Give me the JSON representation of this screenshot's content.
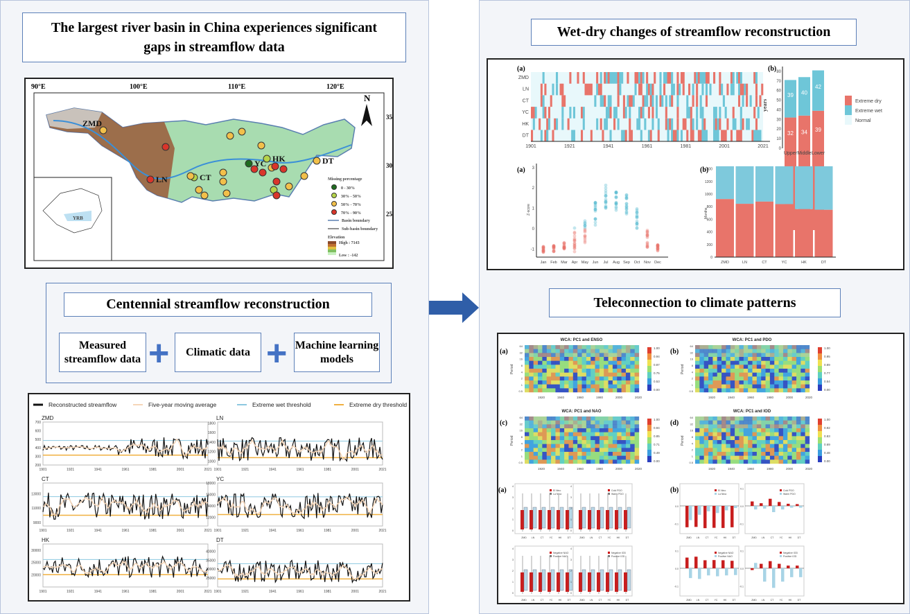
{
  "left": {
    "title": "The largest river basin in China experiences significant gaps in streamflow data",
    "map": {
      "lon_ticks": [
        "90°E",
        "100°E",
        "110°E",
        "120°E"
      ],
      "lat_ticks": [
        "35°N",
        "30°N",
        "25°N"
      ],
      "north": "N",
      "stations": [
        "ZMD",
        "LN",
        "CT",
        "YC",
        "HK",
        "DT"
      ],
      "inset_label": "YRB",
      "legend_title": "Missing percentage",
      "legend": [
        {
          "label": "0 - 30%",
          "color": "#1f6b1f"
        },
        {
          "label": "30% - 50%",
          "color": "#b5d44a"
        },
        {
          "label": "50% - 70%",
          "color": "#f2c04a"
        },
        {
          "label": "70% - 90%",
          "color": "#d9352a"
        }
      ],
      "basin_boundary": "Basin boundary",
      "subbasin_boundary": "Sub-basin boundary",
      "elevation_title": "Elevation",
      "elev_high": "High : 7143",
      "elev_low": "Low : -142"
    },
    "recon_title": "Centennial streamflow reconstruction",
    "inputs": [
      "Measured streamflow data",
      "Climatic data",
      "Machine learning models"
    ],
    "streamflow": {
      "legend": [
        "Reconstructed streamflow",
        "Five-year moving average",
        "Extreme wet threshold",
        "Extreme dry threshold"
      ],
      "colors": {
        "recon": "#111111",
        "ma": "#f6d6b8",
        "wet": "#8cc8e0",
        "dry": "#f0b040"
      },
      "x_ticks": [
        "1901",
        "1921",
        "1941",
        "1961",
        "1981",
        "2001",
        "2021"
      ],
      "panels": [
        {
          "name": "ZMD",
          "yticks": [
            200,
            300,
            400,
            500,
            600,
            700
          ],
          "ylim": [
            200,
            700
          ],
          "wet": 485,
          "dry": 315
        },
        {
          "name": "LN",
          "yticks": [
            1000,
            1200,
            1400,
            1600,
            1800
          ],
          "ylim": [
            920,
            1820
          ],
          "wet": 1420,
          "dry": 1075
        },
        {
          "name": "CT",
          "yticks": [
            9000,
            11000,
            13000
          ],
          "ylim": [
            8500,
            14500
          ],
          "wet": 12600,
          "dry": 10000
        },
        {
          "name": "YC",
          "yticks": [
            12000,
            14000,
            16000,
            18000
          ],
          "ylim": [
            10500,
            18000
          ],
          "wet": 15600,
          "dry": 12500
        },
        {
          "name": "HK",
          "yticks": [
            20000,
            25000,
            30000
          ],
          "ylim": [
            15000,
            32500
          ],
          "wet": 26200,
          "dry": 20000
        },
        {
          "name": "DT",
          "yticks": [
            25000,
            30000,
            35000,
            40000
          ],
          "ylim": [
            20000,
            44000
          ],
          "wet": 33000,
          "dry": 24500
        }
      ]
    }
  },
  "right": {
    "wetdry_title": "Wet-dry changes of streamflow reconstruction",
    "heat": {
      "label": "(a)",
      "rows": [
        "ZMD",
        "LN",
        "CT",
        "YC",
        "HK",
        "DT"
      ],
      "x_ticks": [
        "1901",
        "1921",
        "1941",
        "1961",
        "1981",
        "2001",
        "2021"
      ],
      "colors": {
        "dry": "#e8746a",
        "wet": "#6ec6d8",
        "normal": "#e8f8fb"
      }
    },
    "years_bar": {
      "label": "(b)",
      "ylabel": "years",
      "yticks": [
        0,
        10,
        20,
        30,
        40,
        50,
        60,
        70,
        80
      ],
      "categories": [
        "Upper",
        "Middle",
        "Lower"
      ],
      "dry": [
        32,
        34,
        39
      ],
      "wet": [
        39,
        40,
        42
      ],
      "legend": [
        "Extreme dry",
        "Extreme wet",
        "Normal"
      ]
    },
    "monthly": {
      "label": "(a)",
      "ylabel": "Z-score",
      "yticks": [
        -1,
        0,
        1,
        2,
        3
      ],
      "months": [
        "Jan",
        "Feb",
        "Mar",
        "Apr",
        "May",
        "Jun",
        "Jul",
        "Aug",
        "Sep",
        "Oct",
        "Nov",
        "Dec"
      ],
      "centers": [
        -1,
        -1,
        -0.85,
        -0.55,
        -0.1,
        0.7,
        1.6,
        1.4,
        1.1,
        0.4,
        -0.5,
        -0.95
      ]
    },
    "months_bar": {
      "label": "(b)",
      "ylabel": "Months",
      "yticks": [
        0,
        200,
        400,
        600,
        800,
        1000,
        1200,
        1400
      ],
      "categories": [
        "ZMD",
        "LN",
        "CT",
        "YC",
        "HK",
        "DT"
      ],
      "dry": [
        920,
        845,
        880,
        840,
        760,
        750
      ],
      "total": 1440
    },
    "tele_title": "Teleconnection to climate patterns",
    "wca": [
      {
        "label": "(a)",
        "title": "WCA: PC1 and ENSO",
        "scale": [
          "1.00",
          "0.94",
          "0.87",
          "0.75",
          "0.53",
          "0.00"
        ]
      },
      {
        "label": "(b)",
        "title": "WCA: PC1 and PDO",
        "scale": [
          "1.00",
          "0.95",
          "0.89",
          "0.77",
          "0.54",
          "0.00"
        ]
      },
      {
        "label": "(c)",
        "title": "WCA: PC1 and NAO",
        "scale": [
          "1.00",
          "0.94",
          "0.85",
          "0.71",
          "0.49",
          "0.00"
        ]
      },
      {
        "label": "(d)",
        "title": "WCA: PC1 and IOD",
        "scale": [
          "1.00",
          "0.92",
          "0.83",
          "0.69",
          "0.48",
          "0.00"
        ]
      }
    ],
    "wca_period_label": "Period",
    "wca_yticks": [
      "64",
      "32",
      "16",
      "8",
      "4",
      "2",
      "1",
      "0.5"
    ],
    "wca_xticks": [
      "1920",
      "1940",
      "1960",
      "1980",
      "2000",
      "2020"
    ],
    "box_label": "(a)",
    "bar_label": "(b)",
    "stations": [
      "ZMD",
      "LN",
      "CT",
      "YC",
      "HK",
      "DT"
    ],
    "box_legends": [
      [
        "El Nino",
        "La Nina"
      ],
      [
        "Cold PDO",
        "Warm PDO"
      ],
      [
        "Negative NAO",
        "Positive NAO"
      ],
      [
        "Negative IOD",
        "Positive IOD"
      ]
    ],
    "box_yticks": [
      "0",
      "1",
      "2",
      "3",
      "4"
    ],
    "bar_yticks": [
      "0.1",
      "0.0",
      "-0.1"
    ],
    "anom_bars": [
      {
        "legend": [
          "El Nino",
          "La Nina"
        ],
        "a": [
          -0.12,
          -0.118,
          -0.125,
          -0.123,
          -0.124,
          -0.12
        ],
        "b": [
          -0.08,
          -0.05,
          -0.03,
          -0.04,
          -0.025,
          -0.012
        ]
      },
      {
        "legend": [
          "Cold PDO",
          "Warm PDO"
        ],
        "a": [
          0.025,
          0.015,
          0.04,
          0.022,
          0.012,
          0.01
        ],
        "b": [
          -0.02,
          -0.015,
          -0.035,
          -0.02,
          -0.01,
          -0.01
        ]
      },
      {
        "legend": [
          "Negative NAO",
          "Positive NAO"
        ],
        "a": [
          0.06,
          0.065,
          0.045,
          0.046,
          0.045,
          0.042
        ],
        "b": [
          -0.055,
          -0.06,
          -0.04,
          -0.045,
          -0.04,
          -0.038
        ]
      },
      {
        "legend": [
          "Negative IOD",
          "Positive IOD"
        ],
        "a": [
          -0.01,
          0.025,
          0.04,
          0.025,
          0.015,
          0.015
        ],
        "b": [
          0.03,
          -0.075,
          -0.11,
          -0.075,
          -0.05,
          -0.05
        ]
      }
    ]
  }
}
